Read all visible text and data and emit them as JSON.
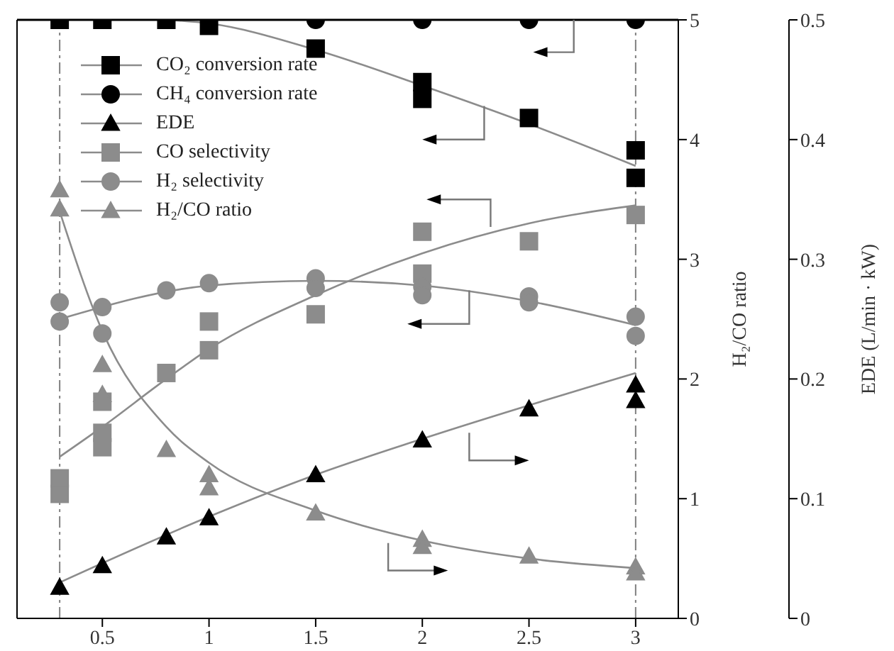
{
  "chart_data": {
    "type": "scatter",
    "ylabel": "H₂/CO ratio",
    "y2label": "EDE (L/min · kW)",
    "xlim": [
      0.1,
      3.2
    ],
    "xticks": [
      0.5,
      1,
      1.5,
      2,
      2.5,
      3
    ],
    "ylim": [
      0,
      5
    ],
    "yticks": [
      0,
      1,
      2,
      3,
      4,
      5
    ],
    "y2lim": [
      0,
      0.5
    ],
    "y2ticks": [
      0,
      0.1,
      0.2,
      0.3,
      0.4,
      0.5
    ],
    "grid": false,
    "legend": "top left",
    "ref_lines": [
      {
        "axis": "x",
        "value": 0.3,
        "color": "#808080",
        "line_style": "dashed"
      },
      {
        "axis": "x",
        "value": 3,
        "color": "#808080",
        "line_style": "dashed"
      }
    ],
    "series": [
      {
        "name": "CO₂ conversion rate",
        "marker": "square",
        "color": "#000000",
        "axis": "y",
        "x": [
          0.3,
          0.5,
          0.8,
          1,
          1.5,
          2,
          2,
          2.5,
          3,
          3
        ],
        "values": [
          5,
          5,
          5,
          4.95,
          4.76,
          4.48,
          4.34,
          4.18,
          3.91,
          3.68
        ]
      },
      {
        "name": "CH₄ conversion rate",
        "marker": "circle",
        "color": "#000000",
        "axis": "y",
        "x": [
          1.5,
          2,
          2.5,
          3
        ],
        "values": [
          5,
          5,
          5,
          5
        ]
      },
      {
        "name": "EDE",
        "marker": "triangle",
        "color": "#000000",
        "axis": "y2",
        "x": [
          0.3,
          0.5,
          0.8,
          1,
          1.5,
          2,
          2.5,
          3,
          3
        ],
        "values": [
          0.026,
          0.044,
          0.068,
          0.084,
          0.12,
          0.149,
          0.175,
          0.195,
          0.182
        ]
      },
      {
        "name": "CO selectivity",
        "marker": "square",
        "color": "#8c8c8c",
        "axis": "y",
        "x": [
          0.3,
          0.3,
          0.5,
          0.5,
          0.5,
          0.8,
          1,
          1,
          1.5,
          2,
          2,
          2.5,
          3
        ],
        "values": [
          1.17,
          1.04,
          1.81,
          1.55,
          1.43,
          2.05,
          2.48,
          2.24,
          2.54,
          3.23,
          2.88,
          3.15,
          3.37
        ]
      },
      {
        "name": "H₂ selectivity",
        "marker": "circle",
        "color": "#8c8c8c",
        "axis": "y",
        "x": [
          0.3,
          0.3,
          0.5,
          0.5,
          0.8,
          1,
          1.5,
          1.5,
          2,
          2,
          2.5,
          2.5,
          3,
          3
        ],
        "values": [
          2.64,
          2.48,
          2.6,
          2.38,
          2.74,
          2.8,
          2.84,
          2.76,
          2.77,
          2.7,
          2.69,
          2.64,
          2.52,
          2.36
        ]
      },
      {
        "name": "H₂/CO ratio",
        "marker": "triangle",
        "color": "#8c8c8c",
        "axis": "y",
        "x": [
          0.3,
          0.3,
          0.5,
          0.5,
          0.8,
          1,
          1,
          1.5,
          2,
          2,
          2.5,
          3,
          3
        ],
        "values": [
          3.58,
          3.42,
          2.12,
          1.87,
          1.41,
          1.2,
          1.09,
          0.88,
          0.66,
          0.6,
          0.52,
          0.43,
          0.38
        ]
      },
      {
        "type": "line",
        "marker": "none",
        "color": "#8c8c8c",
        "axis": "y",
        "x": [
          0.8,
          1,
          1.5,
          2,
          2.5,
          3
        ],
        "values": [
          5,
          4.97,
          4.75,
          4.45,
          4.13,
          3.78
        ]
      },
      {
        "type": "line",
        "marker": "none",
        "color": "#8c8c8c",
        "axis": "y2",
        "x": [
          0.3,
          1,
          1.5,
          2,
          3
        ],
        "values": [
          0.03,
          0.085,
          0.12,
          0.15,
          0.205
        ]
      },
      {
        "type": "line",
        "marker": "none",
        "color": "#8c8c8c",
        "axis": "y",
        "x": [
          0.3,
          0.5,
          0.8,
          1,
          1.5,
          2,
          2.5,
          3
        ],
        "values": [
          1.35,
          1.6,
          2.0,
          2.25,
          2.7,
          3.05,
          3.3,
          3.45
        ]
      },
      {
        "type": "line",
        "marker": "none",
        "color": "#8c8c8c",
        "axis": "y",
        "x": [
          0.3,
          1,
          1.5,
          2,
          2.5,
          3
        ],
        "values": [
          2.5,
          2.78,
          2.82,
          2.78,
          2.65,
          2.45
        ]
      },
      {
        "type": "line",
        "marker": "none",
        "color": "#8c8c8c",
        "axis": "y",
        "x": [
          0.3,
          0.5,
          0.8,
          1,
          1.5,
          2,
          2.5,
          3
        ],
        "values": [
          3.4,
          2.4,
          1.6,
          1.3,
          0.9,
          0.65,
          0.5,
          0.42
        ]
      }
    ]
  }
}
